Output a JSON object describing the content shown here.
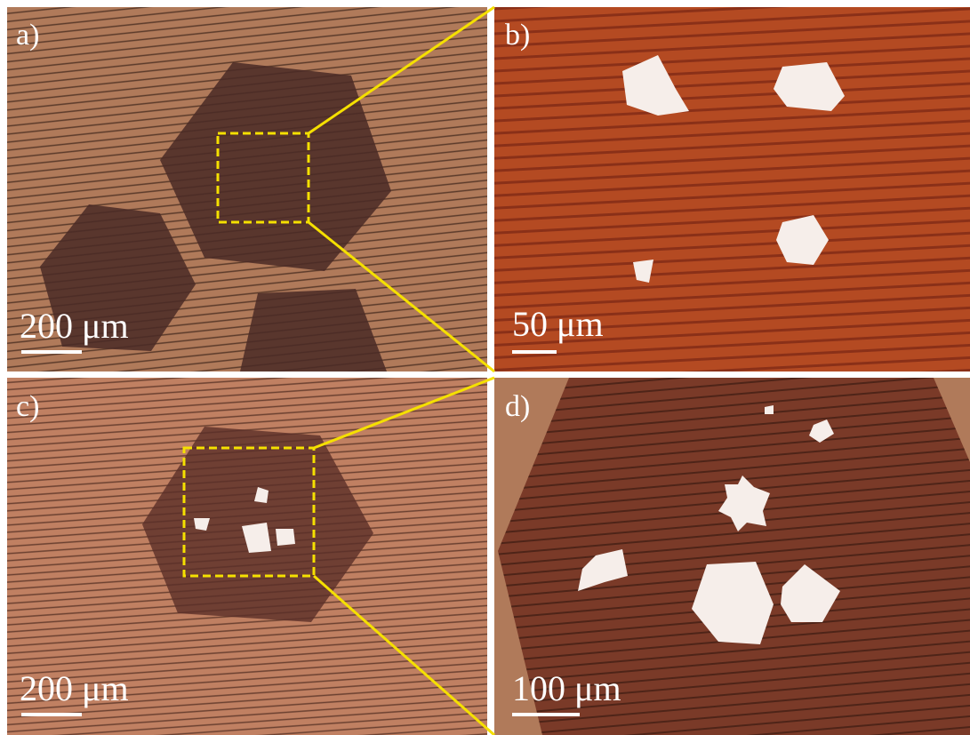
{
  "panels": [
    {
      "label": "a)",
      "scale": "200 μm"
    },
    {
      "label": "b)",
      "scale": "50  μm"
    },
    {
      "label": "c)",
      "scale": "200 μm"
    },
    {
      "label": "d)",
      "scale": "100 μm"
    }
  ]
}
